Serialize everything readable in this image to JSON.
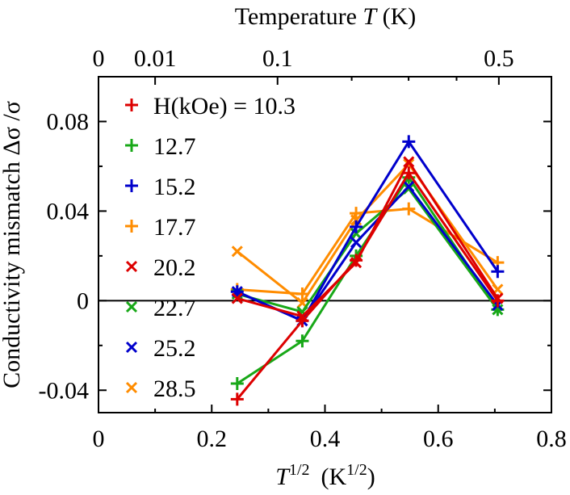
{
  "chart_data": {
    "type": "line",
    "ylabel": "Conductivity mismatch Δσ /σ",
    "xlabel_base": "T",
    "xlabel_sup": "1/2",
    "xlabel_unit_base": "(K",
    "xlabel_unit_sup": "1/2",
    "xlabel_unit_close": ")",
    "top_label_prefix": "Temperature ",
    "top_label_var": "T",
    "top_label_suffix": " (K)",
    "xlim": [
      0,
      0.8
    ],
    "ylim": [
      -0.05,
      0.1
    ],
    "x_ticks": [
      {
        "v": 0,
        "label": "0"
      },
      {
        "v": 0.2,
        "label": "0.2"
      },
      {
        "v": 0.4,
        "label": "0.4"
      },
      {
        "v": 0.6,
        "label": "0.6"
      },
      {
        "v": 0.8,
        "label": "0.8"
      }
    ],
    "x_minor_ticks": [
      0.1,
      0.3,
      0.5,
      0.7
    ],
    "y_ticks": [
      {
        "v": -0.04,
        "label": "-0.04"
      },
      {
        "v": 0,
        "label": "0"
      },
      {
        "v": 0.04,
        "label": "0.04"
      },
      {
        "v": 0.08,
        "label": "0.08"
      }
    ],
    "y_minor_ticks": [
      -0.02,
      0.02,
      0.06
    ],
    "top_ticks": [
      {
        "T": 0,
        "label": "0"
      },
      {
        "T": 0.01,
        "label": "0.01"
      },
      {
        "T": 0.1,
        "label": "0.1"
      },
      {
        "T": 0.5,
        "label": "0.5"
      }
    ],
    "top_minor_ticks": [
      0.2,
      0.3,
      0.4
    ],
    "zero_line": true,
    "legend_title": "H(kOe) = ",
    "x": [
      0.245,
      0.36,
      0.455,
      0.548,
      0.705
    ],
    "series": [
      {
        "name": "10.3",
        "marker": "+",
        "color": "#dd0000",
        "values": [
          -0.044,
          -0.009,
          0.018,
          0.057,
          0.0
        ]
      },
      {
        "name": "12.7",
        "marker": "+",
        "color": "#18a818",
        "values": [
          -0.037,
          -0.018,
          0.02,
          0.055,
          -0.004
        ]
      },
      {
        "name": "15.2",
        "marker": "+",
        "color": "#0000cc",
        "values": [
          0.004,
          -0.009,
          0.033,
          0.071,
          0.013
        ]
      },
      {
        "name": "17.7",
        "marker": "+",
        "color": "#ff8c00",
        "values": [
          0.005,
          0.003,
          0.039,
          0.041,
          0.017
        ]
      },
      {
        "name": "20.2",
        "marker": "x",
        "color": "#dd0000",
        "values": [
          0.001,
          -0.007,
          0.017,
          0.062,
          0.001
        ]
      },
      {
        "name": "22.7",
        "marker": "x",
        "color": "#18a818",
        "values": [
          0.003,
          -0.005,
          0.03,
          0.05,
          -0.004
        ]
      },
      {
        "name": "25.2",
        "marker": "x",
        "color": "#0000cc",
        "values": [
          0.004,
          -0.009,
          0.026,
          0.051,
          -0.002
        ]
      },
      {
        "name": "28.5",
        "marker": "x",
        "color": "#ff8c00",
        "values": [
          0.022,
          -0.001,
          0.036,
          0.061,
          0.005
        ]
      }
    ]
  }
}
